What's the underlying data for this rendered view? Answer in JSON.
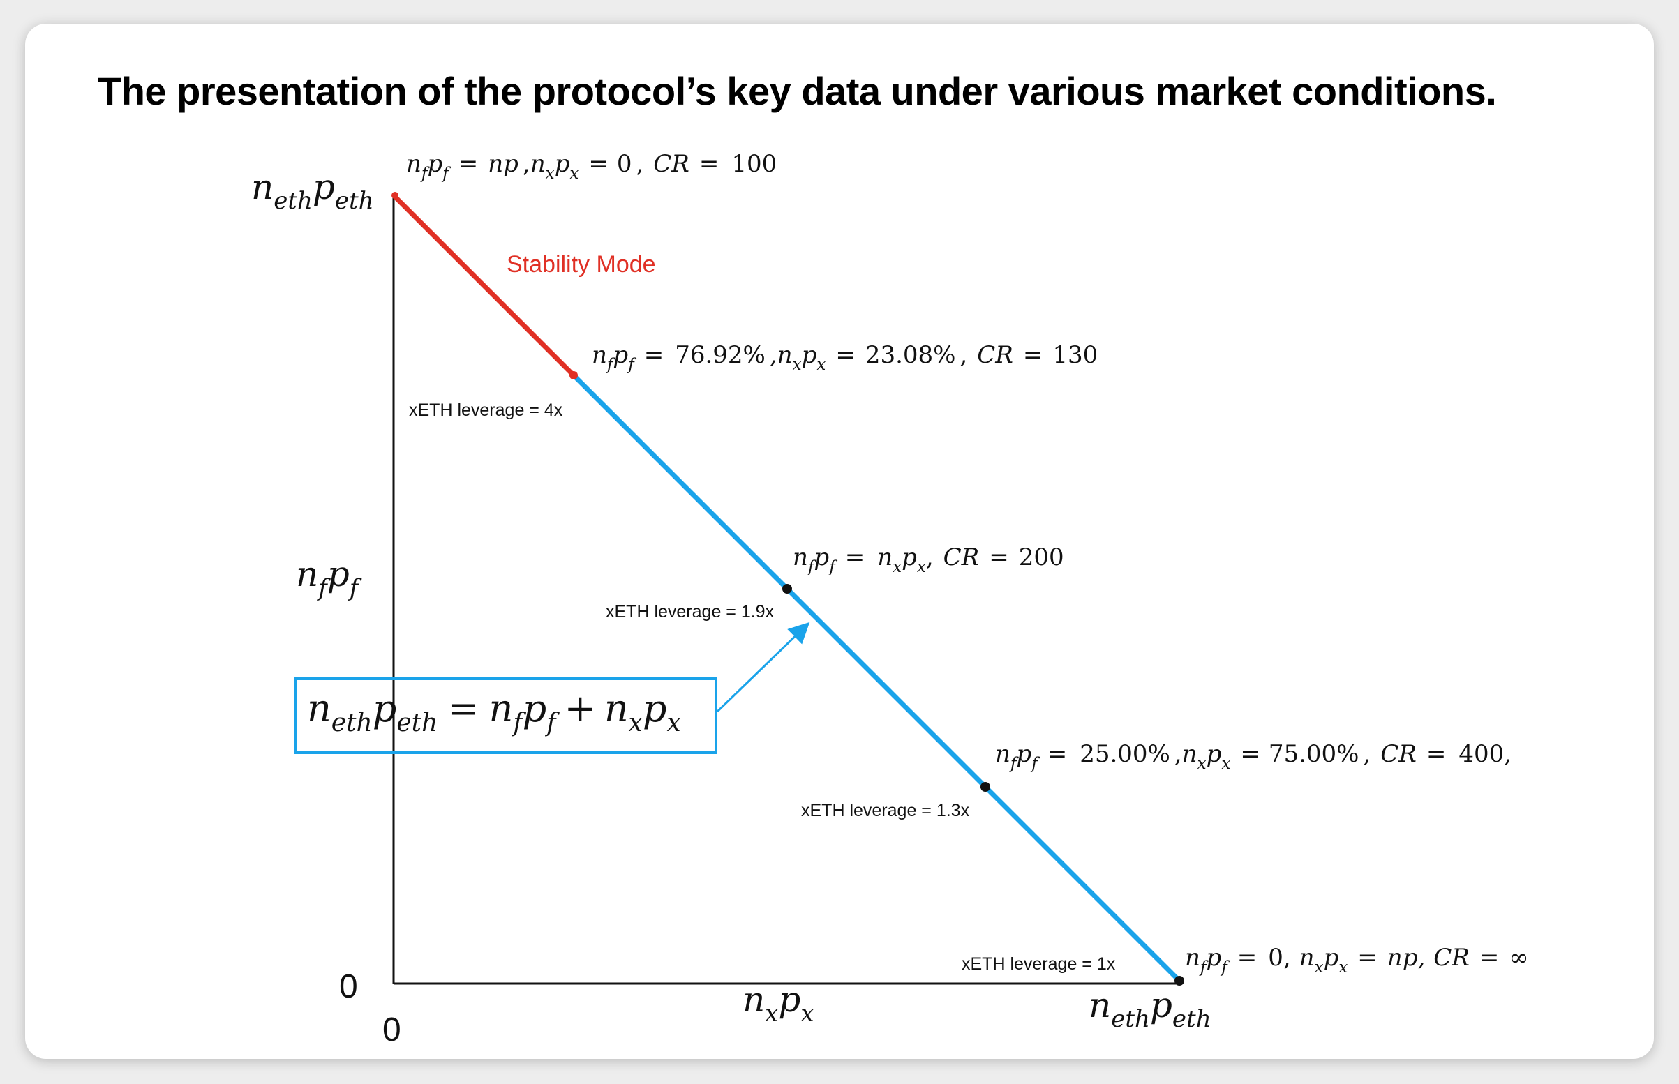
{
  "title": "The presentation of the protocol’s key data under various market conditions.",
  "colors": {
    "stability": "#e03025",
    "normal": "#1aa3ea",
    "axis": "#111111",
    "formula_border": "#1aa3ea"
  },
  "axes": {
    "y_top": {
      "n": "n",
      "n_sub": "eth",
      "p": "p",
      "p_sub": "eth"
    },
    "y_mid": {
      "n": "n",
      "n_sub": "f",
      "p": "p",
      "p_sub": "f"
    },
    "x_mid": {
      "n": "n",
      "n_sub": "x",
      "p": "p",
      "p_sub": "x"
    },
    "x_right": {
      "n": "n",
      "n_sub": "eth",
      "p": "p",
      "p_sub": "eth"
    },
    "origin_y": "0",
    "origin_x": "0"
  },
  "stability_label": "Stability Mode",
  "points": {
    "p1": {
      "np_f": "np",
      "np_x": "0",
      "cr": "100"
    },
    "p2": {
      "np_f": "76.92%",
      "np_x": "23.08%",
      "cr": "130"
    },
    "p3": {
      "cr": "200"
    },
    "p4": {
      "np_f": "25.00%",
      "np_x": "75.00%",
      "cr": "400,"
    },
    "p5": {
      "np_f": "0,",
      "np_x": "np,",
      "cr": "∞"
    }
  },
  "leverage": {
    "l1": "xETH leverage = 4x",
    "l2": "xETH leverage = 1.9x",
    "l3": "xETH leverage = 1.3x",
    "l4": "xETH leverage = 1x"
  },
  "formula": {
    "lhs_n": "n",
    "lhs_n_sub": "eth",
    "lhs_p": "p",
    "lhs_p_sub": "eth",
    "eq": "=",
    "plus": "+",
    "n": "n",
    "p": "p",
    "f": "f",
    "x": "x"
  }
}
